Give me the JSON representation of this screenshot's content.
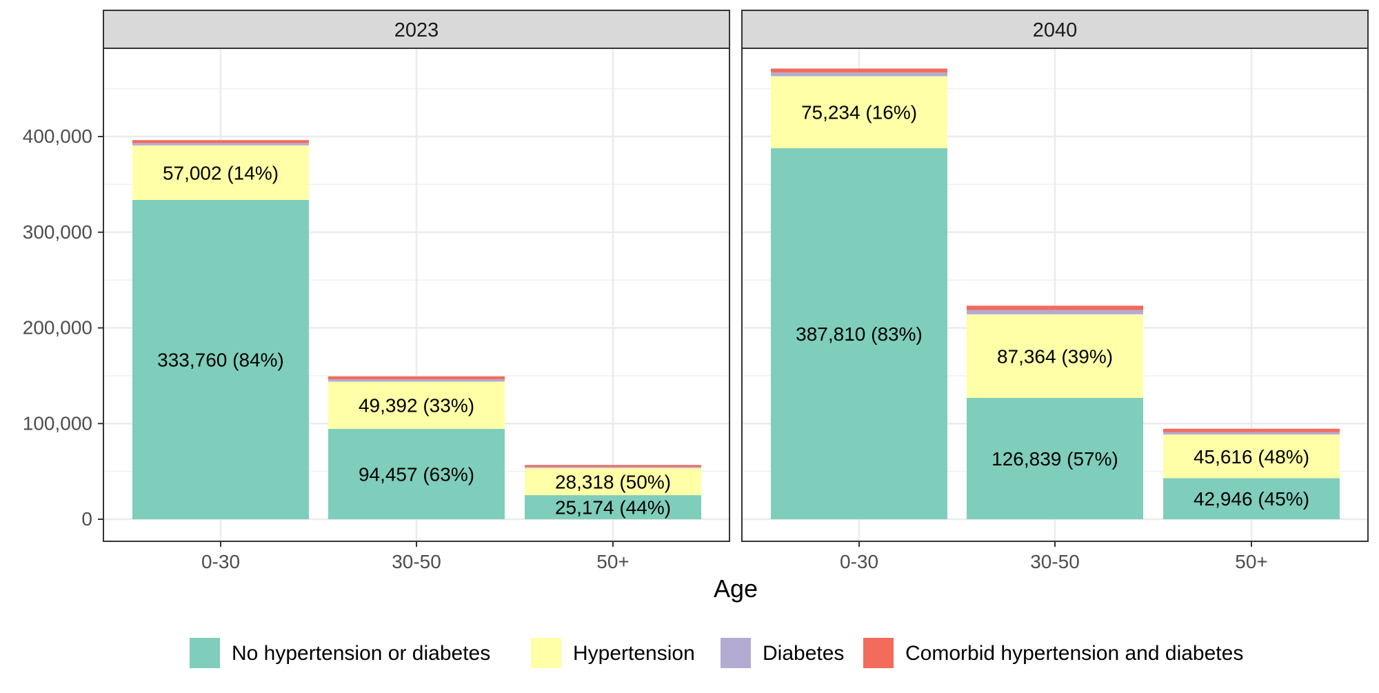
{
  "chart_data": {
    "type": "bar",
    "stacked": true,
    "facets": [
      "2023",
      "2040"
    ],
    "categories": [
      "0-30",
      "30-50",
      "50+"
    ],
    "xlabel": "Age",
    "ylabel": "",
    "ylim": [
      0,
      480000
    ],
    "yticks": [
      0,
      100000,
      200000,
      300000,
      400000
    ],
    "ytick_labels": [
      "0",
      "100,000",
      "200,000",
      "300,000",
      "400,000"
    ],
    "grid": true,
    "legend_position": "bottom",
    "series": [
      {
        "name": "No hypertension or diabetes",
        "color": "#7FCDBB",
        "values": {
          "2023": [
            333760,
            94457,
            25174
          ],
          "2040": [
            387810,
            126839,
            42946
          ]
        },
        "labels": {
          "2023": [
            "333,760 (84%)",
            "94,457 (63%)",
            "25,174 (44%)"
          ],
          "2040": [
            "387,810 (83%)",
            "126,839 (57%)",
            "42,946 (45%)"
          ]
        }
      },
      {
        "name": "Hypertension",
        "color": "#FFFFA8",
        "values": {
          "2023": [
            57002,
            49392,
            28318
          ],
          "2040": [
            75234,
            87364,
            45616
          ]
        },
        "labels": {
          "2023": [
            "57,002 (14%)",
            "49,392 (33%)",
            "28,318 (50%)"
          ],
          "2040": [
            "75,234 (16%)",
            "87,364 (39%)",
            "45,616 (48%)"
          ]
        }
      },
      {
        "name": "Diabetes",
        "color": "#B3ABD2",
        "values": {
          "2023": [
            2500,
            2500,
            1200
          ],
          "2040": [
            4000,
            4500,
            2500
          ]
        },
        "labels": {
          "2023": [
            "",
            "",
            ""
          ],
          "2040": [
            "",
            "",
            ""
          ]
        }
      },
      {
        "name": "Comorbid hypertension and diabetes",
        "color": "#F26B5B",
        "values": {
          "2023": [
            3000,
            3000,
            2000
          ],
          "2040": [
            4000,
            4500,
            3500
          ]
        },
        "labels": {
          "2023": [
            "",
            "",
            ""
          ],
          "2040": [
            "",
            "",
            ""
          ]
        }
      }
    ]
  }
}
